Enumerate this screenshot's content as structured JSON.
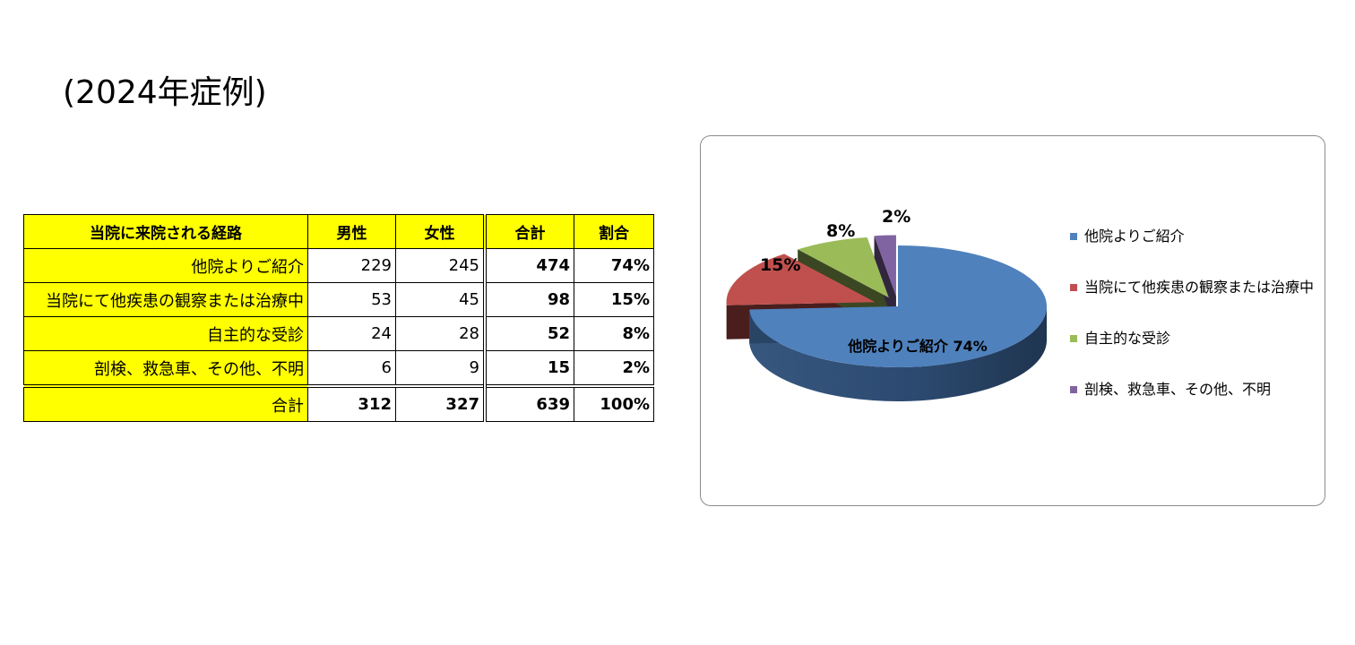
{
  "title": "(2024年症例)",
  "table": {
    "headers": [
      "当院に来院される経路",
      "男性",
      "女性",
      "合計",
      "割合"
    ],
    "rows": [
      {
        "label": "他院よりご紹介",
        "male": "229",
        "female": "245",
        "total": "474",
        "ratio": "74%"
      },
      {
        "label": "当院にて他疾患の観察または治療中",
        "male": "53",
        "female": "45",
        "total": "98",
        "ratio": "15%"
      },
      {
        "label": "自主的な受診",
        "male": "24",
        "female": "28",
        "total": "52",
        "ratio": "8%"
      },
      {
        "label": "剖検、救急車、その他、不明",
        "male": "6",
        "female": "9",
        "total": "15",
        "ratio": "2%"
      }
    ],
    "total": {
      "label": "合計",
      "male": "312",
      "female": "327",
      "total": "639",
      "ratio": "100%"
    }
  },
  "chart_data": {
    "type": "pie",
    "style": "3d-exploded",
    "slices": [
      {
        "label": "他院よりご紹介",
        "value": 474,
        "percent_label": "74%",
        "color": "#4f81bd"
      },
      {
        "label": "当院にて他疾患の観察または治療中",
        "value": 98,
        "percent_label": "15%",
        "color": "#c0504d"
      },
      {
        "label": "自主的な受診",
        "value": 52,
        "percent_label": "8%",
        "color": "#9bbb59"
      },
      {
        "label": "剖検、救急車、その他、不明",
        "value": 15,
        "percent_label": "2%",
        "color": "#8064a2"
      }
    ],
    "inside_label": "他院よりご紹介 74%",
    "legend_position": "right"
  }
}
